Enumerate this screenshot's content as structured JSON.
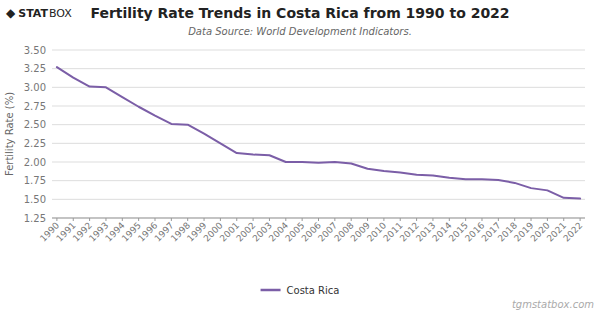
{
  "chart_data": {
    "type": "line",
    "title": "Fertility Rate Trends in Costa Rica from 1990 to 2022",
    "subtitle": "Data Source: World Development Indicators.",
    "ylabel": "Fertility Rate (%)",
    "annotations": [
      "◆",
      "STAT",
      "BOX",
      "tgmstatbox.com"
    ],
    "x": [
      1990,
      1991,
      1992,
      1993,
      1994,
      1995,
      1996,
      1997,
      1998,
      1999,
      2000,
      2001,
      2002,
      2003,
      2004,
      2005,
      2006,
      2007,
      2008,
      2009,
      2010,
      2011,
      2012,
      2013,
      2014,
      2015,
      2016,
      2017,
      2018,
      2019,
      2020,
      2021,
      2022
    ],
    "series": [
      {
        "name": "Costa Rica",
        "color": "#7b5ea7",
        "values": [
          3.27,
          3.13,
          3.01,
          3.0,
          2.87,
          2.74,
          2.62,
          2.51,
          2.5,
          2.38,
          2.25,
          2.12,
          2.1,
          2.09,
          2.0,
          2.0,
          1.99,
          2.0,
          1.98,
          1.91,
          1.88,
          1.86,
          1.83,
          1.82,
          1.79,
          1.77,
          1.77,
          1.76,
          1.72,
          1.65,
          1.62,
          1.52,
          1.51
        ]
      }
    ],
    "xlim": [
      1989.7,
      2022.3
    ],
    "xticks": [
      1990,
      1991,
      1992,
      1993,
      1994,
      1995,
      1996,
      1997,
      1998,
      1999,
      2000,
      2001,
      2002,
      2003,
      2004,
      2005,
      2006,
      2007,
      2008,
      2009,
      2010,
      2011,
      2012,
      2013,
      2014,
      2015,
      2016,
      2017,
      2018,
      2019,
      2020,
      2021,
      2022
    ],
    "ylim": [
      1.25,
      3.5
    ],
    "yticks": [
      1.25,
      {
        "value": 1.5,
        "label": "1.50"
      },
      1.75,
      {
        "value": 2.0,
        "label": "2.00"
      },
      2.25,
      {
        "value": 2.5,
        "label": "2.50"
      },
      2.75,
      {
        "value": 3.0,
        "label": "3.00"
      },
      3.25,
      {
        "value": 3.5,
        "label": "3.50"
      }
    ],
    "grid": true,
    "legend": "bottom"
  }
}
